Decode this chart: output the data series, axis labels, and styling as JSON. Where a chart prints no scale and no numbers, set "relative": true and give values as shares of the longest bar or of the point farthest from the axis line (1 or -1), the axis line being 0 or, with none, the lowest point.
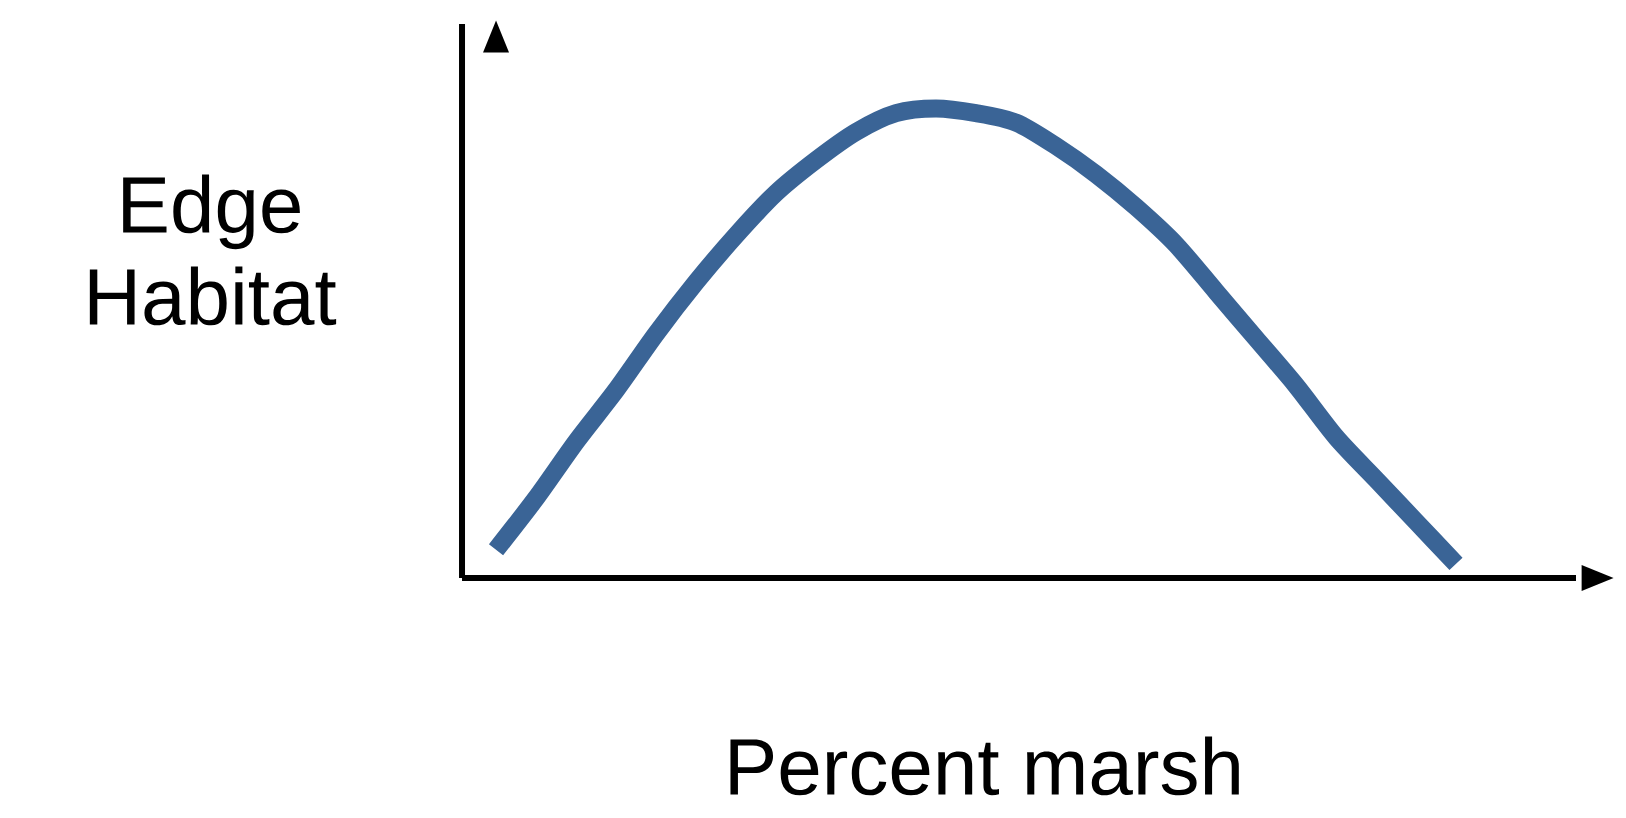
{
  "chart_data": {
    "type": "line",
    "relative": true,
    "xlabel": "Percent marsh",
    "ylabel": "Edge Habitat",
    "categories": [
      null,
      null,
      null,
      null,
      null,
      null,
      null,
      null,
      null,
      null,
      null,
      null,
      null,
      null,
      null,
      null,
      null,
      null,
      null,
      null,
      null,
      null,
      null,
      null,
      null
    ],
    "series": [
      {
        "color": "#3a6496",
        "values": [
          0.06,
          0.17,
          0.29,
          0.4,
          0.52,
          0.63,
          0.73,
          0.82,
          0.89,
          0.95,
          0.99,
          1.0,
          0.99,
          0.97,
          0.92,
          0.86,
          0.79,
          0.71,
          0.61,
          0.51,
          0.41,
          0.3,
          0.21,
          0.12,
          0.03
        ]
      }
    ]
  }
}
